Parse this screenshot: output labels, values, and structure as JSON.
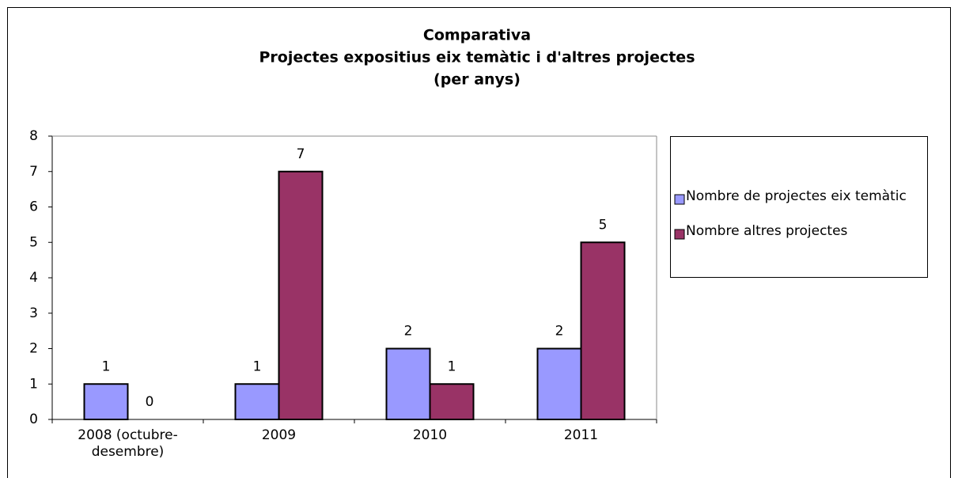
{
  "chart_data": {
    "type": "bar",
    "title": [
      "Comparativa",
      "Projectes expositius eix temàtic i d'altres projectes",
      "(per anys)"
    ],
    "categories": [
      "2008 (octubre-desembre)",
      "2009",
      "2010",
      "2011"
    ],
    "series": [
      {
        "name": "Nombre de projectes eix temàtic",
        "color": "#9999ff",
        "values": [
          1,
          1,
          2,
          2
        ]
      },
      {
        "name": "Nombre altres projectes",
        "color": "#993366",
        "values": [
          0,
          7,
          1,
          5
        ]
      }
    ],
    "ylim": [
      0,
      8
    ],
    "yticks": [
      0,
      1,
      2,
      3,
      4,
      5,
      6,
      7,
      8
    ],
    "legend": "right"
  }
}
